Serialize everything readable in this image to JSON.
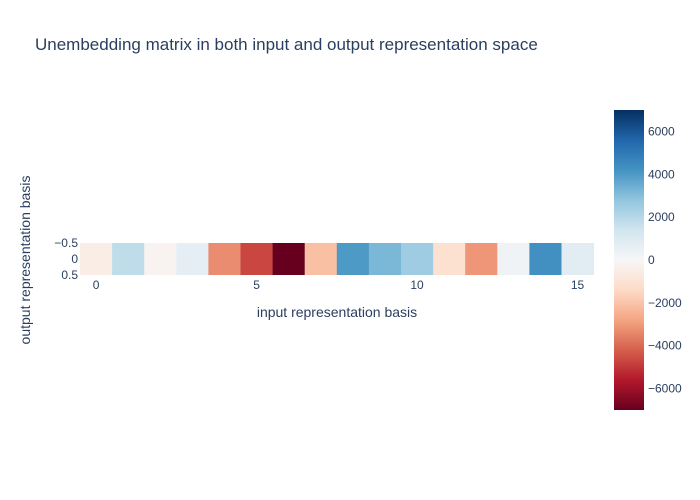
{
  "chart_data": {
    "type": "heatmap",
    "title": "Unembedding matrix in both input and output representation space",
    "xlabel": "input representation basis",
    "ylabel": "output representation basis",
    "x": [
      0,
      1,
      2,
      3,
      4,
      5,
      6,
      7,
      8,
      9,
      10,
      11,
      12,
      13,
      14,
      15
    ],
    "y": [
      0
    ],
    "z": [
      [
        -500,
        1800,
        -200,
        700,
        -3300,
        -4700,
        -7000,
        -2100,
        4000,
        3200,
        2500,
        -1100,
        -3100,
        300,
        4300,
        800
      ]
    ],
    "x_ticks": [
      "0",
      "5",
      "10",
      "15"
    ],
    "y_ticks": [
      "−0.5",
      "0",
      "0.5"
    ],
    "zrange": [
      -7000,
      7000
    ],
    "colorscale": "RdBu",
    "colorbar_ticks": [
      "6000",
      "4000",
      "2000",
      "0",
      "−2000",
      "−4000",
      "−6000"
    ],
    "colorbar_tick_values": [
      6000,
      4000,
      2000,
      0,
      -2000,
      -4000,
      -6000
    ]
  }
}
